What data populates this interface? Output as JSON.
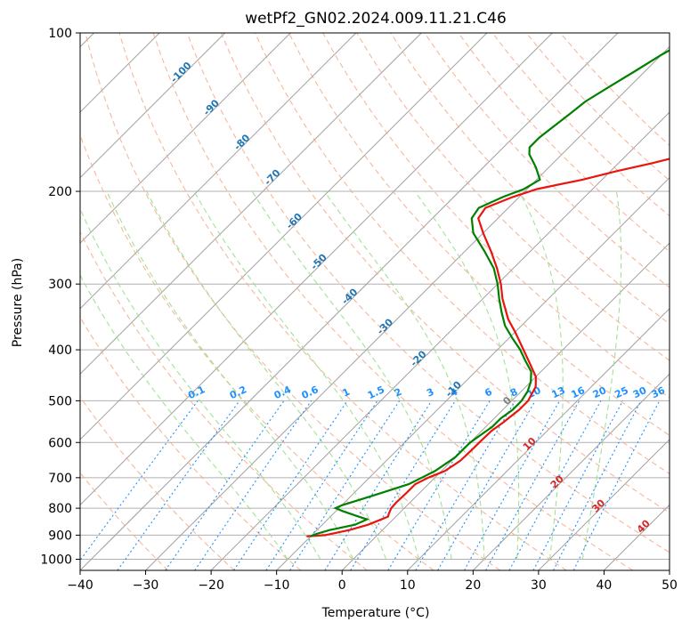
{
  "chart_data": {
    "type": "line",
    "title": "wetPf2_GN02.2024.009.11.21.C46",
    "xlabel": "Temperature (°C)",
    "ylabel": "Pressure (hPa)",
    "xlim": [
      -40,
      50
    ],
    "ylim": [
      1050,
      100
    ],
    "y_scale": "log",
    "grid": true,
    "x_ticks": [
      -40,
      -30,
      -20,
      -10,
      0,
      10,
      20,
      30,
      40,
      50
    ],
    "y_ticks": [
      100,
      200,
      300,
      400,
      500,
      600,
      700,
      800,
      900,
      1000
    ],
    "skew": "skew-T",
    "colors": {
      "temperature": "#e8150f",
      "dewpoint": "#008000",
      "isotherm": "#1f77b4",
      "mixing_ratio": "#1e90ff",
      "dry_adiabat": "#f4a582",
      "moist_adiabat": "#98df8a",
      "isotherm_label_warm": "#d62728",
      "zero_label": "#808080"
    },
    "series": [
      {
        "key": "temperature",
        "p": [
          905,
          900,
          880,
          860,
          840,
          830,
          820,
          800,
          780,
          750,
          720,
          700,
          680,
          650,
          620,
          600,
          570,
          550,
          520,
          500,
          470,
          450,
          420,
          400,
          370,
          350,
          320,
          300,
          280,
          260,
          240,
          225,
          215,
          205,
          198,
          190,
          183,
          177,
          172,
          165,
          158,
          150,
          142,
          135,
          128,
          120,
          113,
          105,
          100
        ],
        "t": [
          -10.6,
          -8.0,
          -5.0,
          -3.0,
          -1.8,
          -1.2,
          -1.5,
          -2.0,
          -2.1,
          -2.0,
          -2.0,
          -1.0,
          0.5,
          1.3,
          1.4,
          1.4,
          1.5,
          2.0,
          2.5,
          2.5,
          1.5,
          0.0,
          -3.5,
          -6.0,
          -10.0,
          -13.0,
          -17.0,
          -19.5,
          -22.5,
          -26.0,
          -30.0,
          -33.0,
          -33.5,
          -31.0,
          -28.5,
          -23.0,
          -19.0,
          -15.0,
          -12.0,
          -8.0,
          -6.0,
          -3.5,
          -1.5,
          -0.5,
          0.5,
          1.5,
          3.0,
          5.0,
          6.0
        ]
      },
      {
        "key": "dewpoint",
        "p": [
          905,
          895,
          880,
          860,
          840,
          825,
          810,
          800,
          790,
          770,
          750,
          720,
          700,
          680,
          660,
          640,
          620,
          600,
          580,
          560,
          540,
          520,
          500,
          480,
          460,
          440,
          420,
          400,
          380,
          360,
          340,
          320,
          300,
          280,
          260,
          240,
          225,
          215,
          205,
          198,
          190,
          180,
          170,
          165,
          158,
          150,
          143,
          135,
          126,
          118,
          110,
          104,
          100
        ],
        "t": [
          -10.0,
          -9.5,
          -8.0,
          -5.0,
          -4.0,
          -6.5,
          -9.0,
          -10.5,
          -10.0,
          -8.0,
          -6.0,
          -3.0,
          -2.0,
          -1.0,
          -0.5,
          0.0,
          0.0,
          0.0,
          0.5,
          1.0,
          1.0,
          1.5,
          1.5,
          1.0,
          0.0,
          -1.5,
          -4.0,
          -6.5,
          -9.5,
          -12.5,
          -15.0,
          -17.5,
          -20.0,
          -23.0,
          -27.0,
          -31.5,
          -34.0,
          -34.5,
          -32.5,
          -30.5,
          -29.5,
          -32.0,
          -35.0,
          -36.0,
          -36.0,
          -35.5,
          -35.0,
          -34.5,
          -33.0,
          -31.5,
          -30.0,
          -28.5,
          -28.0
        ]
      }
    ],
    "isotherm_labels": [
      -100,
      -90,
      -80,
      -70,
      -60,
      -50,
      -40,
      -30,
      -20,
      -10,
      0,
      10,
      20,
      30,
      40
    ],
    "mixing_ratio_labels": [
      "0.1",
      "0.2",
      "0.4",
      "0.6",
      "1",
      "1.5",
      "2",
      "3",
      "4",
      "6",
      "8",
      "10",
      "13",
      "16",
      "20",
      "25",
      "30",
      "36"
    ],
    "mixing_ratio_values": [
      0.1,
      0.2,
      0.4,
      0.6,
      1,
      1.5,
      2,
      3,
      4,
      6,
      8,
      10,
      13,
      16,
      20,
      25,
      30,
      36
    ],
    "dry_adiabats_theta_c": [
      -30,
      -20,
      -10,
      0,
      10,
      20,
      30,
      40,
      50,
      60,
      70,
      80,
      90,
      100,
      110,
      120,
      130,
      140,
      150,
      160
    ],
    "moist_adiabats_base_c": [
      -10,
      -5,
      0,
      5,
      10,
      15,
      20,
      25,
      30,
      35
    ]
  }
}
